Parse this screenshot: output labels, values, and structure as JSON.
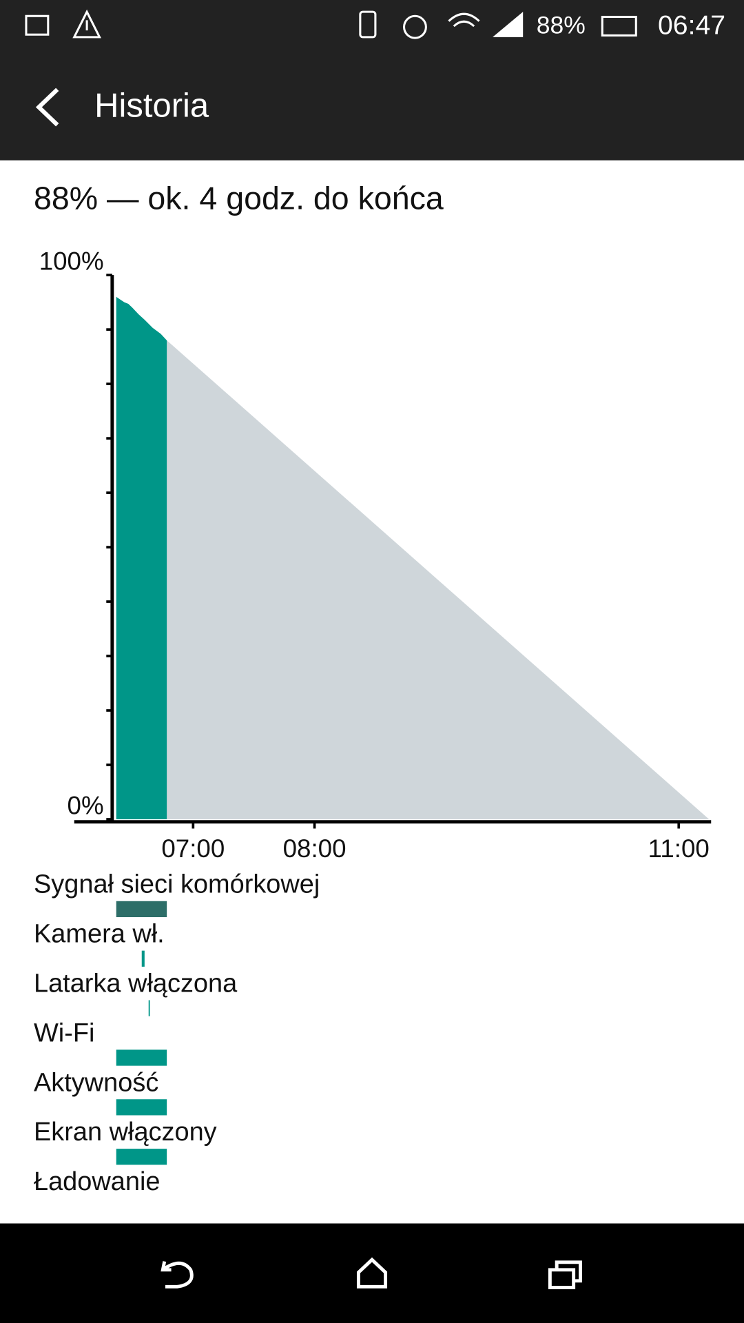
{
  "status_bar": {
    "battery": "88%",
    "time": "06:47"
  },
  "header": {
    "title": "Historia"
  },
  "summary": "88% — ok. 4 godz. do końca",
  "chart_data": {
    "type": "area",
    "x": [
      382,
      384,
      386,
      388,
      390,
      393,
      396,
      400,
      404,
      407
    ],
    "values": [
      96,
      95.5,
      95,
      94.7,
      94,
      92.8,
      91.8,
      90.3,
      89.2,
      88
    ],
    "color": "#009688",
    "projection": {
      "x": [
        407,
        675
      ],
      "values": [
        88,
        0
      ],
      "color": "#cfd6da"
    },
    "xlim": [
      380,
      676
    ],
    "xticks": [
      {
        "value": 420,
        "label": "07:00"
      },
      {
        "value": 480,
        "label": "08:00"
      },
      {
        "value": 660,
        "label": "11:00"
      }
    ],
    "ylim": [
      0,
      100
    ],
    "yticks": [
      {
        "value": 0,
        "label": "0%"
      },
      {
        "value": 100,
        "label": "100%"
      }
    ],
    "minor_yticks": [
      10,
      20,
      30,
      40,
      50,
      60,
      70,
      80,
      90
    ],
    "events": [
      {
        "label": "Sygnał sieci komórkowej",
        "start": 382,
        "end": 407,
        "color": "#2d6e68"
      },
      {
        "label": "Kamera wł.",
        "start": 394.6,
        "end": 396,
        "color": "#009688"
      },
      {
        "label": "Latarka włączona",
        "start": 398,
        "end": 398.4,
        "color": "#009688"
      },
      {
        "label": "Wi-Fi",
        "start": 382,
        "end": 407,
        "color": "#009688"
      },
      {
        "label": "Aktywność",
        "start": 382,
        "end": 407,
        "color": "#009688"
      },
      {
        "label": "Ekran włączony",
        "start": 382,
        "end": 407,
        "color": "#009688"
      },
      {
        "label": "Ładowanie"
      }
    ]
  }
}
